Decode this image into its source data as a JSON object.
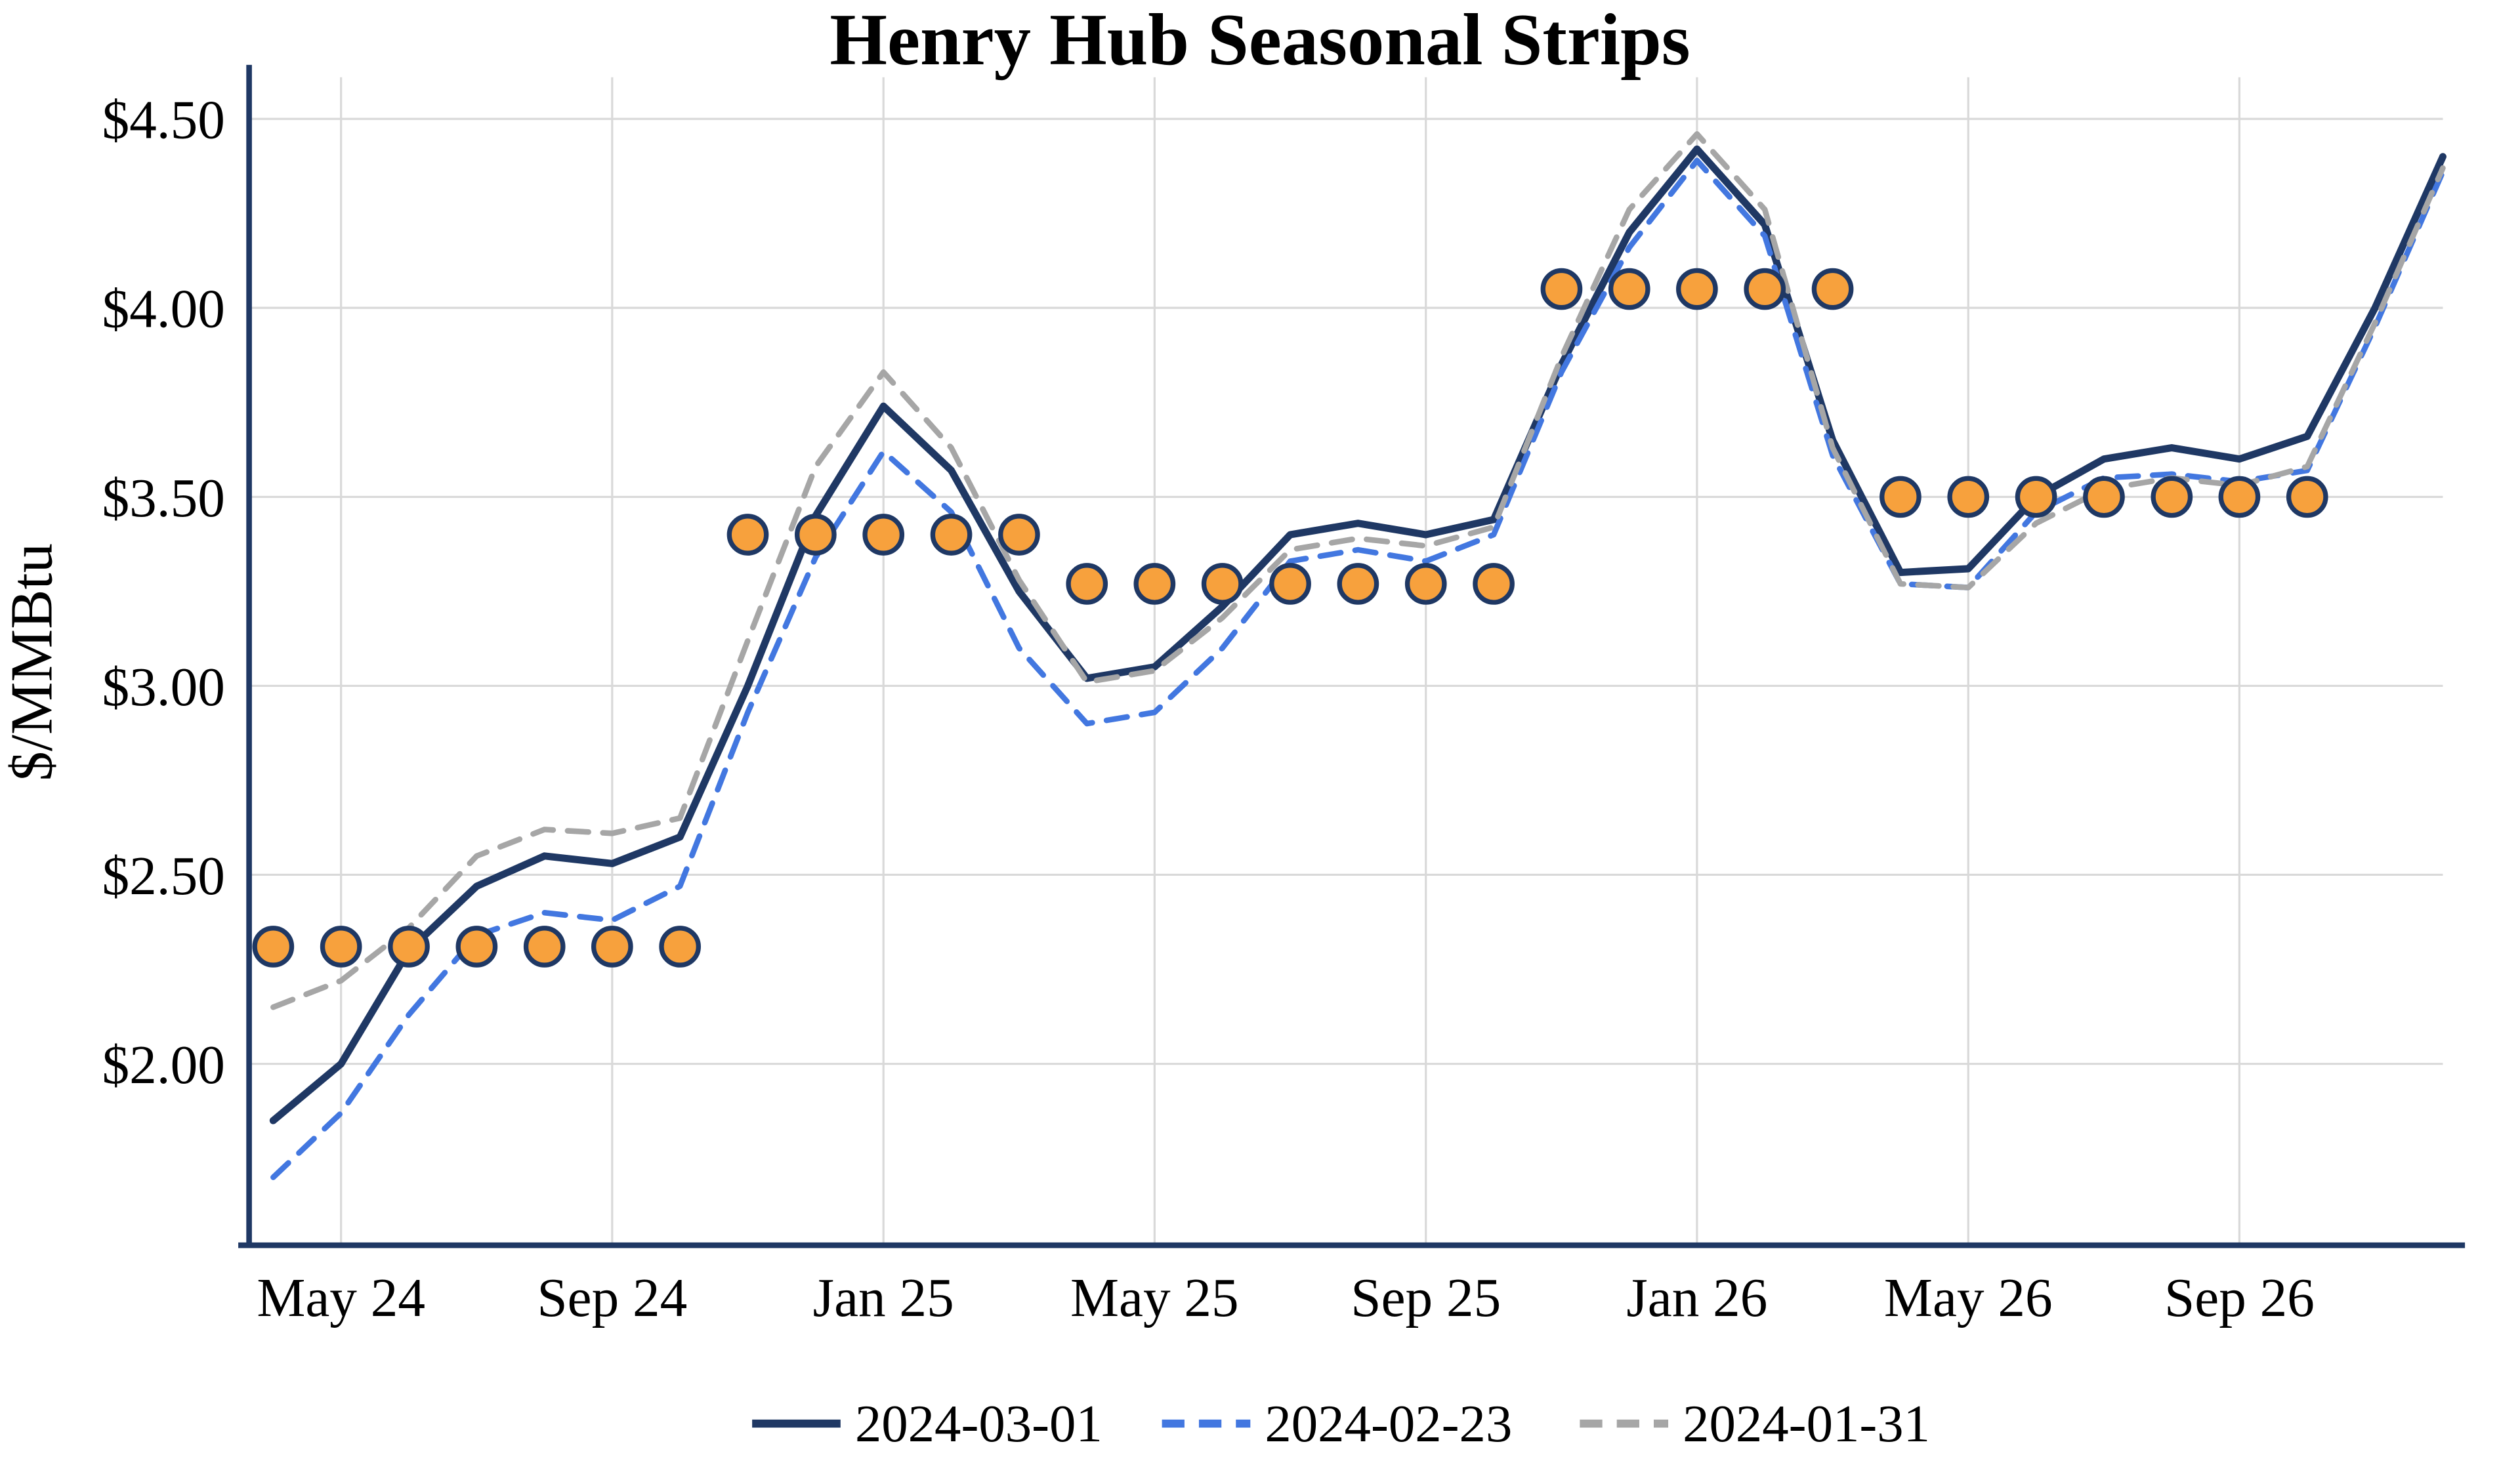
{
  "colors": {
    "background": "#FFFFFF",
    "axis": "#1F3864",
    "grid": "#D9D9D9",
    "text": "#000000"
  },
  "chart_data": {
    "type": "line",
    "title": "Henry Hub Seasonal Strips",
    "ylabel": "$/MMBtu",
    "xlabel": "",
    "grid": true,
    "legend_position": "bottom",
    "ylim": [
      1.52,
      4.61
    ],
    "x": [
      "Apr 24",
      "May 24",
      "Jun 24",
      "Jul 24",
      "Aug 24",
      "Sep 24",
      "Oct 24",
      "Nov 24",
      "Dec 24",
      "Jan 25",
      "Feb 25",
      "Mar 25",
      "Apr 25",
      "May 25",
      "Jun 25",
      "Jul 25",
      "Aug 25",
      "Sep 25",
      "Oct 25",
      "Nov 25",
      "Dec 25",
      "Jan 26",
      "Feb 26",
      "Mar 26",
      "Apr 26",
      "May 26",
      "Jun 26",
      "Jul 26",
      "Aug 26",
      "Sep 26",
      "Oct 26",
      "Nov 26",
      "Dec 26"
    ],
    "xticks": [
      "May 24",
      "Sep 24",
      "Jan 25",
      "May 25",
      "Sep 25",
      "Jan 26",
      "May 26",
      "Sep 26"
    ],
    "yticks": [
      {
        "label": "$2.00",
        "value": 2.0
      },
      {
        "label": "$2.50",
        "value": 2.5
      },
      {
        "label": "$3.00",
        "value": 3.0
      },
      {
        "label": "$3.50",
        "value": 3.5
      },
      {
        "label": "$4.00",
        "value": 4.0
      },
      {
        "label": "$4.50",
        "value": 4.5
      }
    ],
    "series": [
      {
        "name": "2024-03-01",
        "style": "solid",
        "color": "#1F3864",
        "values": [
          1.85,
          2.0,
          2.3,
          2.47,
          2.55,
          2.53,
          2.6,
          3.0,
          3.45,
          3.74,
          3.57,
          3.25,
          3.02,
          3.05,
          3.21,
          3.4,
          3.43,
          3.4,
          3.44,
          3.85,
          4.2,
          4.42,
          4.22,
          3.65,
          3.3,
          3.31,
          3.5,
          3.6,
          3.63,
          3.6,
          3.66,
          4.0,
          4.4
        ]
      },
      {
        "name": "2024-02-23",
        "style": "dashed",
        "color": "#4277E0",
        "values": [
          1.7,
          1.87,
          2.13,
          2.34,
          2.4,
          2.38,
          2.47,
          2.93,
          3.34,
          3.62,
          3.46,
          3.1,
          2.9,
          2.93,
          3.1,
          3.33,
          3.36,
          3.33,
          3.4,
          3.83,
          4.16,
          4.39,
          4.19,
          3.61,
          3.27,
          3.26,
          3.46,
          3.55,
          3.56,
          3.54,
          3.57,
          3.95,
          4.36
        ]
      },
      {
        "name": "2024-01-31",
        "style": "dashed",
        "color": "#A6A6A6",
        "values": [
          2.15,
          2.22,
          2.36,
          2.55,
          2.62,
          2.61,
          2.65,
          3.12,
          3.58,
          3.83,
          3.63,
          3.28,
          3.01,
          3.04,
          3.18,
          3.36,
          3.39,
          3.37,
          3.42,
          3.87,
          4.26,
          4.46,
          4.26,
          3.63,
          3.27,
          3.26,
          3.43,
          3.52,
          3.55,
          3.53,
          3.58,
          3.96,
          4.37
        ]
      }
    ],
    "strips": [
      {
        "start": "Apr 24",
        "end": "Oct 24",
        "value": 2.31
      },
      {
        "start": "Nov 24",
        "end": "Mar 25",
        "value": 3.4
      },
      {
        "start": "Apr 25",
        "end": "Oct 25",
        "value": 3.27
      },
      {
        "start": "Nov 25",
        "end": "Mar 26",
        "value": 4.05
      },
      {
        "start": "Apr 26",
        "end": "Oct 26",
        "value": 3.5
      }
    ],
    "marker": {
      "shape": "circle",
      "color": "#F7A13D",
      "border": "#1F3864"
    }
  }
}
